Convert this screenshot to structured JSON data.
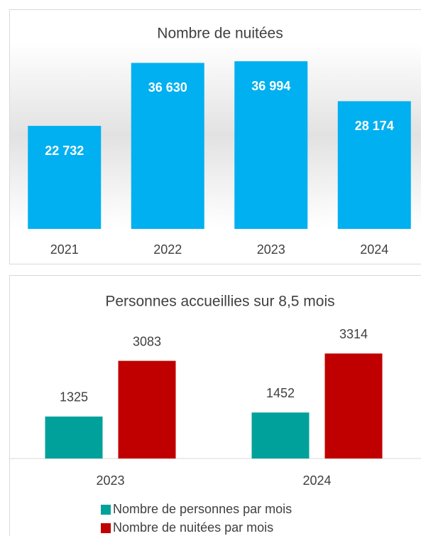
{
  "chart_data": [
    {
      "type": "bar",
      "title": "Nombre de nuitées",
      "categories": [
        "2021",
        "2022",
        "2023",
        "2024"
      ],
      "values": [
        22732,
        36630,
        36994,
        28174
      ],
      "value_labels": [
        "22 732",
        "36 630",
        "36 994",
        "28 174"
      ],
      "color": "#00B0F0",
      "ylim": [
        0,
        40000
      ]
    },
    {
      "type": "grouped-bar",
      "title": "Personnes accueillies sur 8,5 mois",
      "categories": [
        "2023",
        "2024"
      ],
      "series": [
        {
          "name": "Nombre de personnes par mois",
          "color": "#00A19A",
          "values": [
            1325,
            1452
          ]
        },
        {
          "name": "Nombre de nuitées par mois",
          "color": "#C00000",
          "values": [
            3083,
            3314
          ]
        }
      ],
      "ylim": [
        0,
        3500
      ]
    }
  ]
}
